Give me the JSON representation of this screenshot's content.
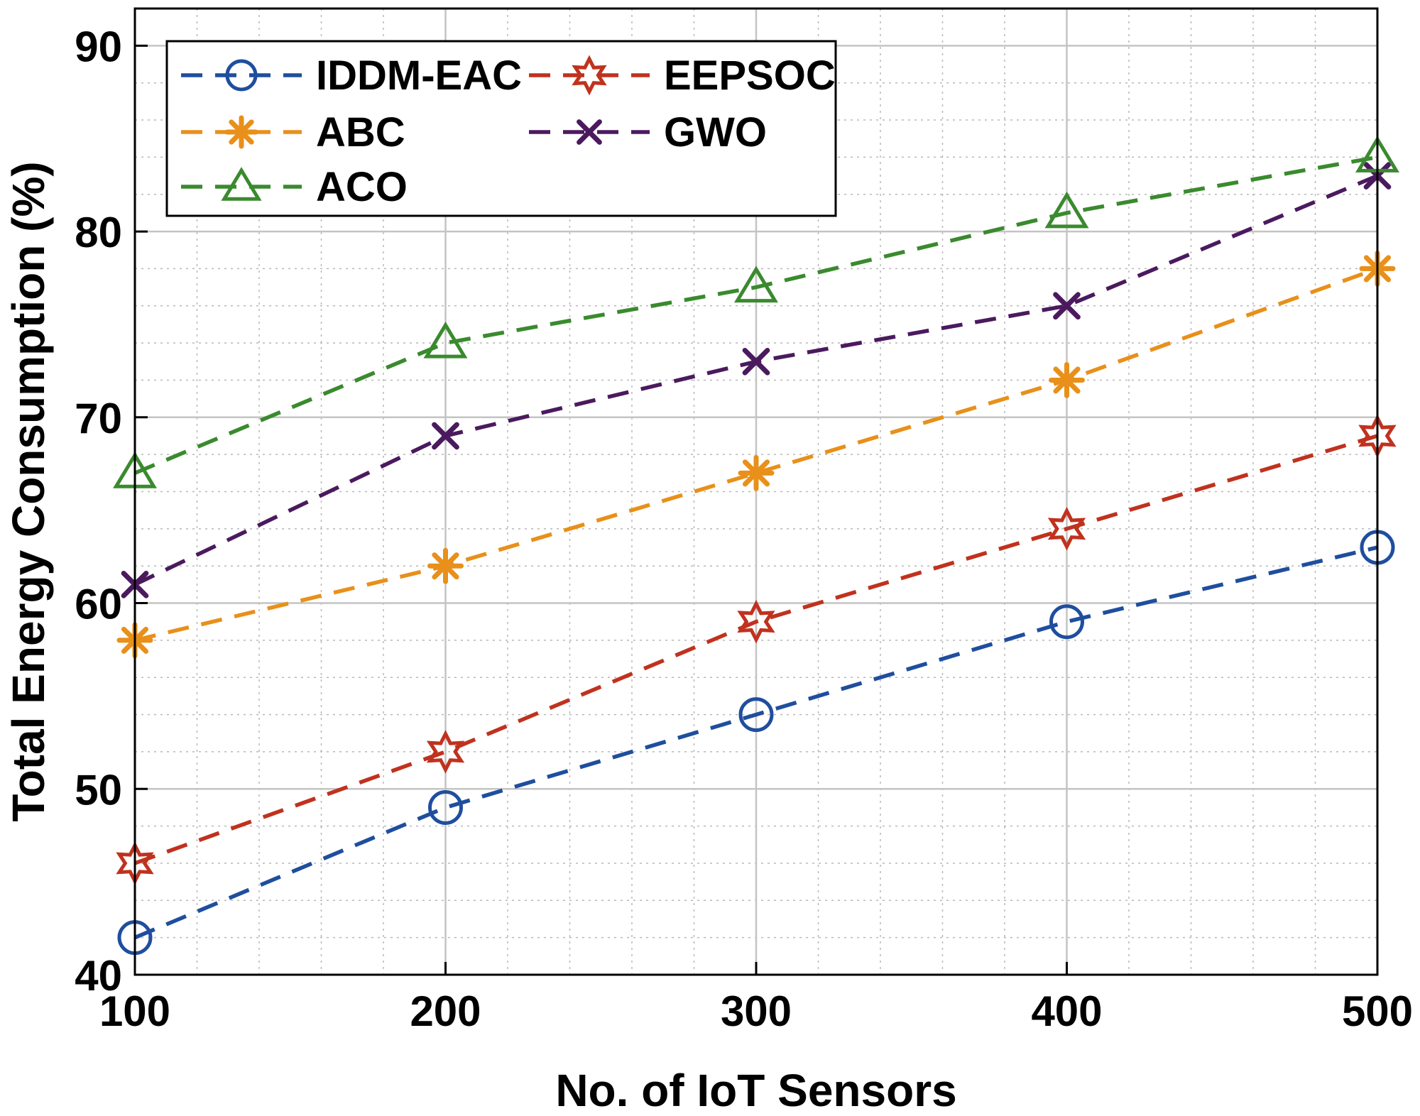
{
  "chart_data": {
    "type": "line",
    "title": "",
    "xlabel": "No. of IoT Sensors",
    "ylabel": "Total Energy Consumption (%)",
    "x": [
      100,
      200,
      300,
      400,
      500
    ],
    "xlim": [
      100,
      500
    ],
    "ylim": [
      40,
      92
    ],
    "xticks": [
      100,
      200,
      300,
      400,
      500
    ],
    "yticks": [
      40,
      50,
      60,
      70,
      80,
      90
    ],
    "grid": true,
    "minor_grid": true,
    "legend_position": "top-left",
    "series": [
      {
        "name": "IDDM-EAC",
        "values": [
          42,
          49,
          54,
          59,
          63
        ],
        "color": "#1f4e9e",
        "marker": "circle"
      },
      {
        "name": "EEPSOC",
        "values": [
          46,
          52,
          59,
          64,
          69
        ],
        "color": "#c0321e",
        "marker": "hexagram"
      },
      {
        "name": "ABC",
        "values": [
          58,
          62,
          67,
          72,
          78
        ],
        "color": "#e8901a",
        "marker": "asterisk"
      },
      {
        "name": "GWO",
        "values": [
          61,
          69,
          73,
          76,
          83
        ],
        "color": "#4b1a5e",
        "marker": "x"
      },
      {
        "name": "ACO",
        "values": [
          67,
          74,
          77,
          81,
          84
        ],
        "color": "#3a8a2e",
        "marker": "triangle"
      }
    ]
  }
}
